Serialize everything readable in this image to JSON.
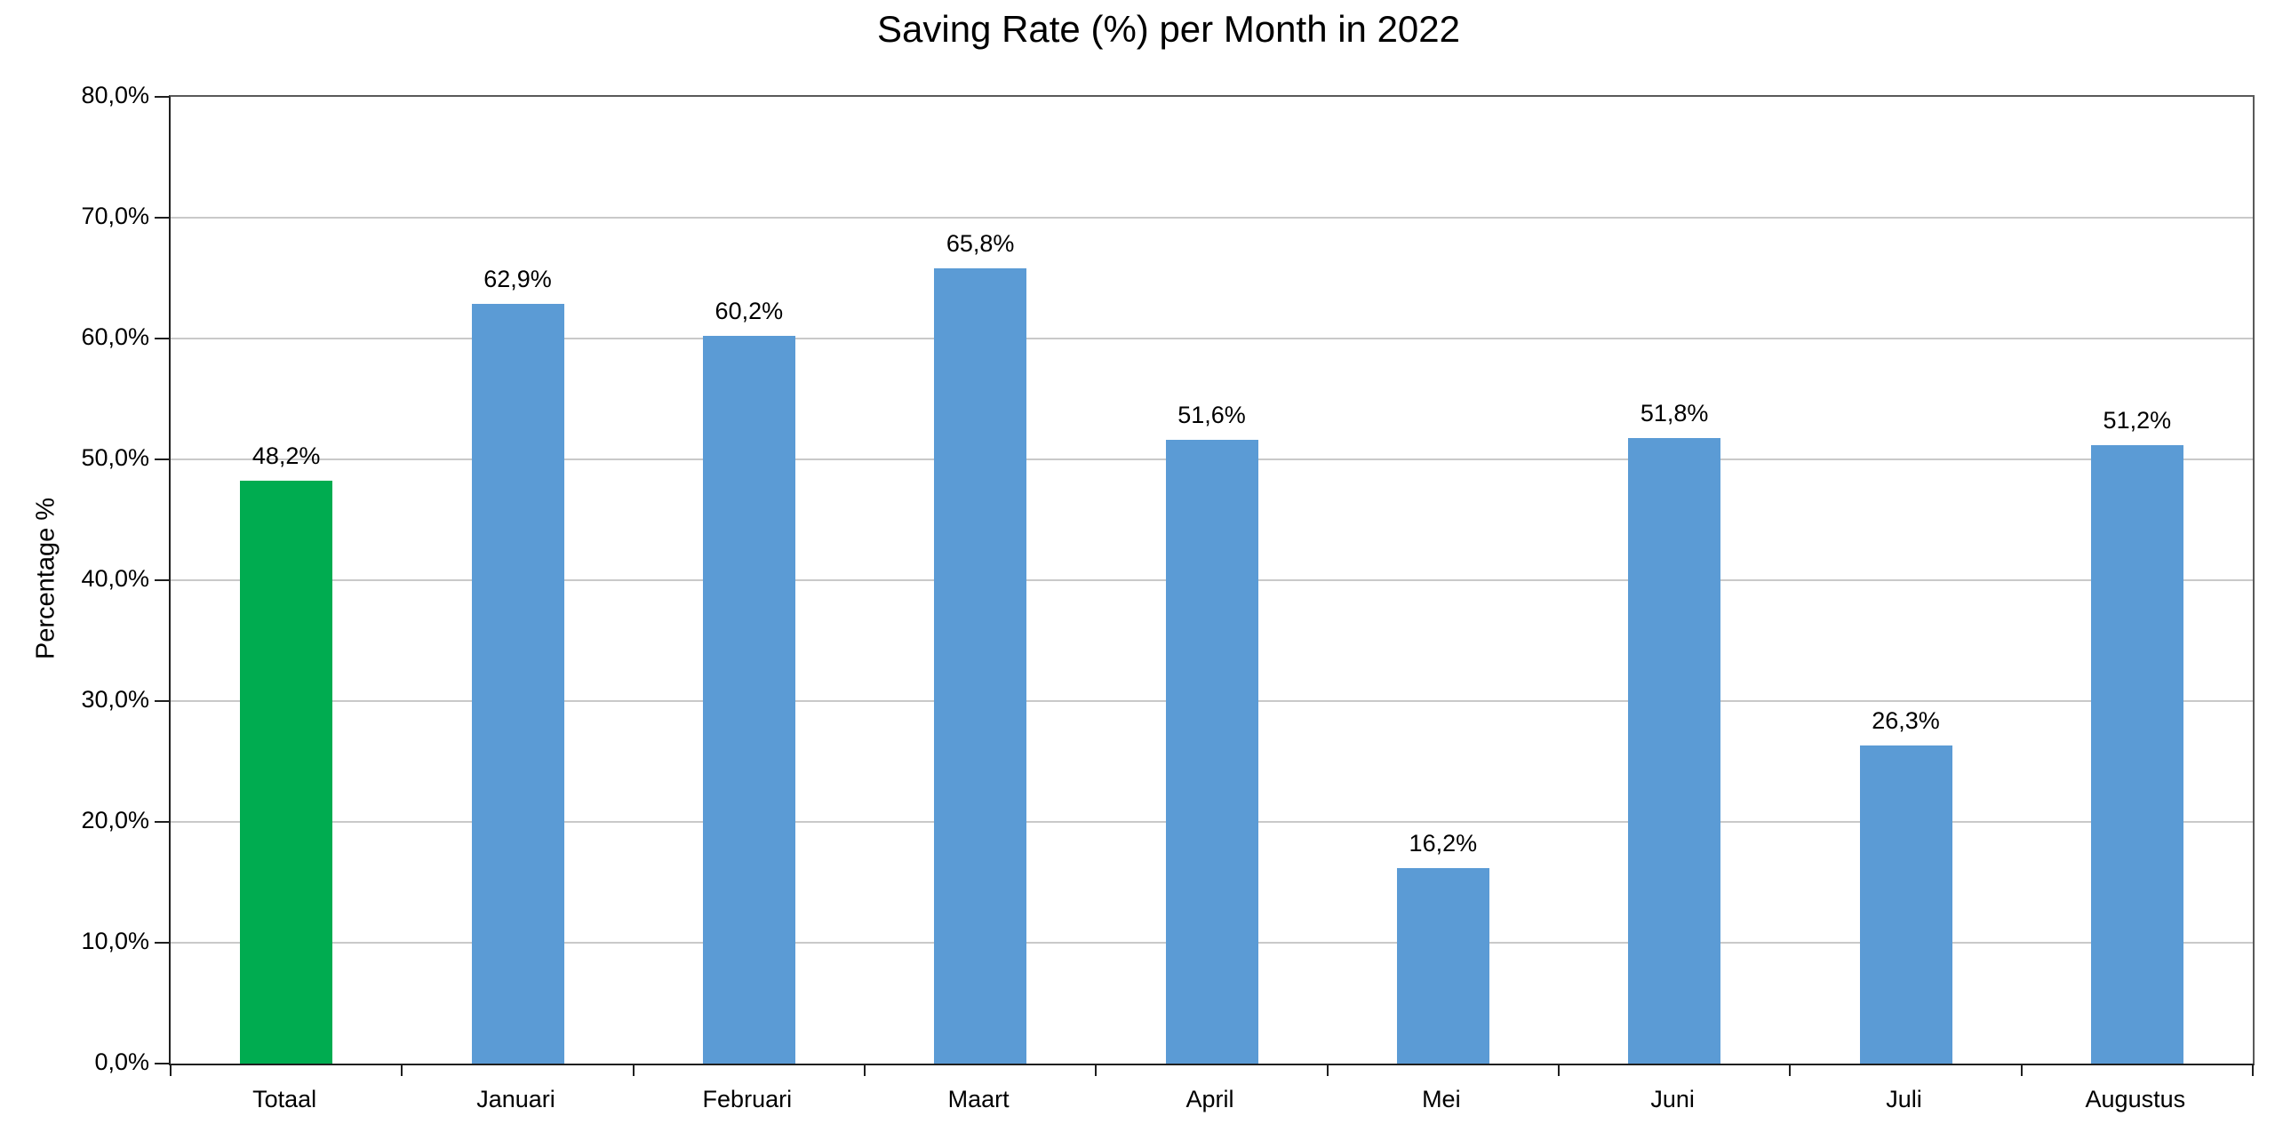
{
  "chart_data": {
    "type": "bar",
    "title": "Saving Rate (%) per Month in 2022",
    "xlabel": "",
    "ylabel": "Percentage %",
    "categories": [
      "Totaal",
      "Januari",
      "Februari",
      "Maart",
      "April",
      "Mei",
      "Juni",
      "Juli",
      "Augustus"
    ],
    "values": [
      48.2,
      62.9,
      60.2,
      65.8,
      51.6,
      16.2,
      51.8,
      26.3,
      51.2
    ],
    "data_labels": [
      "48,2%",
      "62,9%",
      "60,2%",
      "65,8%",
      "51,6%",
      "16,2%",
      "51,8%",
      "26,3%",
      "51,2%"
    ],
    "bar_colors": [
      "#00AC50",
      "#5B9BD5",
      "#5B9BD5",
      "#5B9BD5",
      "#5B9BD5",
      "#5B9BD5",
      "#5B9BD5",
      "#5B9BD5",
      "#5B9BD5"
    ],
    "ylim": [
      0,
      80
    ],
    "ytick_step": 10,
    "ytick_labels": [
      "0,0%",
      "10,0%",
      "20,0%",
      "30,0%",
      "40,0%",
      "50,0%",
      "60,0%",
      "70,0%",
      "80,0%"
    ],
    "grid": true,
    "legend": "none",
    "decimal_separator": ","
  },
  "colors": {
    "bar_default": "#5B9BD5",
    "bar_highlight": "#00AC50",
    "gridline": "#C9C9C9",
    "axis_line": "#1F1F1F",
    "plot_border": "#595959",
    "text": "#000000",
    "background": "#FFFFFF"
  }
}
